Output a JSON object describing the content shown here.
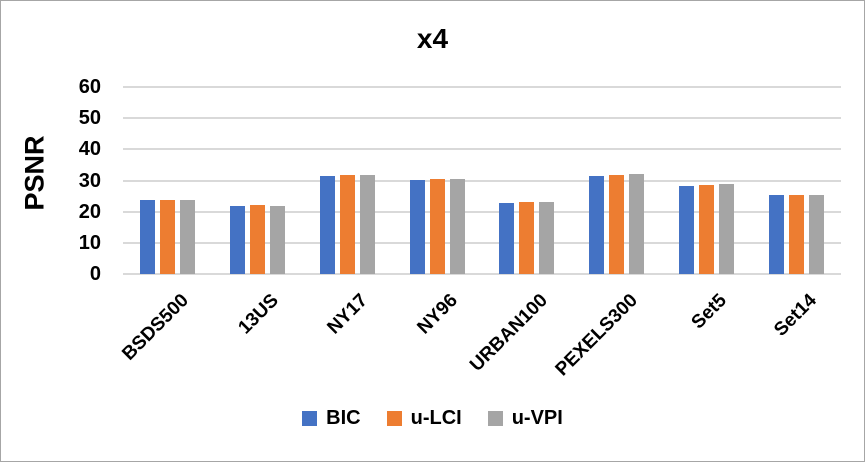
{
  "chart_data": {
    "type": "bar",
    "title": "x4",
    "ylabel": "PSNR",
    "xlabel": "",
    "categories": [
      "BSDS500",
      "13US",
      "NY17",
      "NY96",
      "URBAN100",
      "PEXELS300",
      "Set5",
      "Set14"
    ],
    "series": [
      {
        "name": "BIC",
        "color": "#4472C4",
        "values": [
          23.6,
          21.9,
          31.5,
          30.2,
          22.8,
          31.4,
          28.3,
          25.4
        ]
      },
      {
        "name": "u-LCI",
        "color": "#ED7D31",
        "values": [
          23.6,
          22.0,
          31.9,
          30.5,
          23.1,
          31.8,
          28.7,
          25.5
        ]
      },
      {
        "name": "u-VPI",
        "color": "#A5A5A5",
        "values": [
          23.9,
          21.9,
          31.8,
          30.4,
          23.0,
          32.1,
          29.0,
          25.3
        ]
      }
    ],
    "ylim": [
      0,
      60
    ],
    "yticks": [
      0,
      10,
      20,
      30,
      40,
      50,
      60
    ],
    "grid": true,
    "legend_position": "bottom"
  },
  "colors": {
    "gridline": "#D9D9D9",
    "axis_text": "#000000",
    "chart_border": "#A6A6A6",
    "background": "#FFFFFF"
  }
}
